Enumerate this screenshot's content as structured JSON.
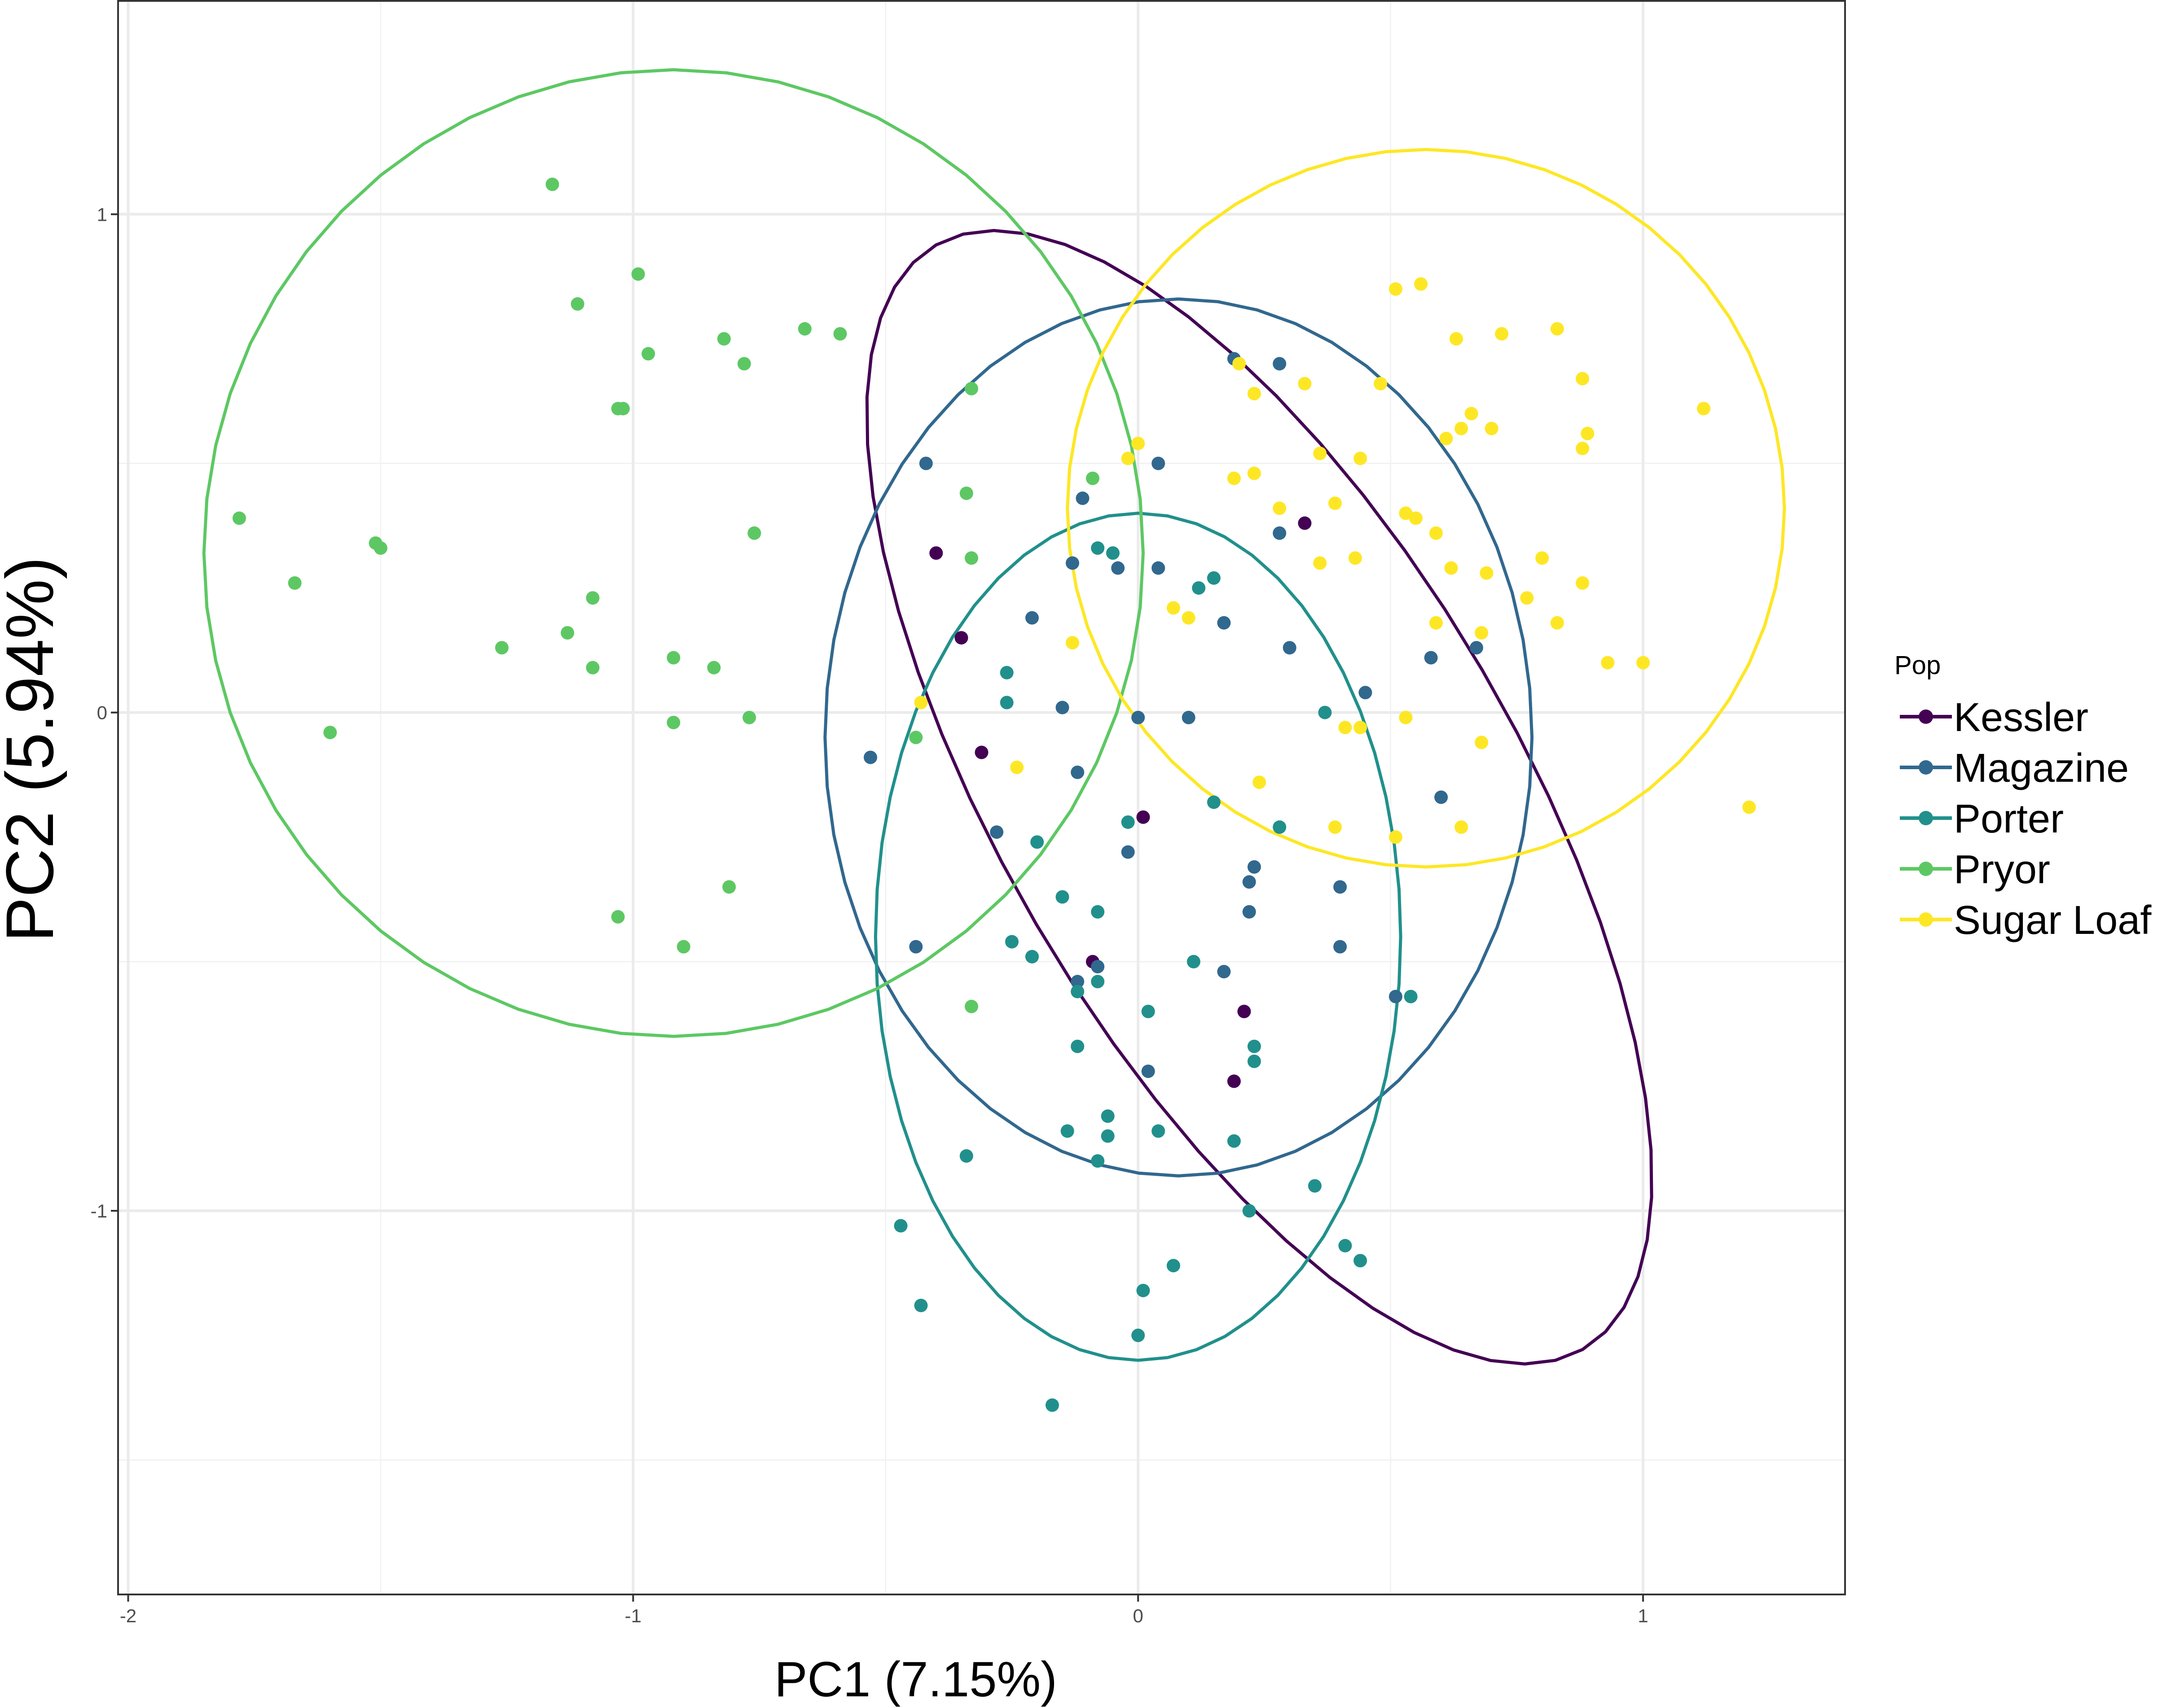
{
  "chart_data": {
    "type": "scatter",
    "xlabel": "PC1 (7.15%)",
    "ylabel": "PC2 (5.94%)",
    "xlim": [
      -2.02,
      1.4
    ],
    "ylim": [
      -1.77,
      1.43
    ],
    "x_ticks": [
      -2,
      -1,
      0,
      1
    ],
    "x_tick_labels": [
      "-2",
      "-1",
      "0",
      "1"
    ],
    "y_ticks": [
      -1,
      0,
      1
    ],
    "y_tick_labels": [
      "-1",
      "0",
      "1"
    ],
    "grid": true,
    "legend_position": "right",
    "legend_title": "Pop",
    "ellipses": true,
    "series": [
      {
        "name": "Kessler",
        "color": "#440154",
        "points": [
          [
            -0.4,
            0.32
          ],
          [
            -0.35,
            0.15
          ],
          [
            -0.31,
            -0.08
          ],
          [
            0.33,
            0.38
          ],
          [
            0.01,
            -0.21
          ],
          [
            -0.09,
            -0.5
          ],
          [
            0.21,
            -0.6
          ],
          [
            0.19,
            -0.74
          ]
        ],
        "ellipse": {
          "cx": 0.24,
          "cy": -0.17,
          "rx": 1.28,
          "ry": 0.51,
          "angle_deg": -60
        }
      },
      {
        "name": "Magazine",
        "color": "#31688E",
        "points": [
          [
            0.19,
            0.71
          ],
          [
            0.28,
            0.7
          ],
          [
            -0.42,
            0.5
          ],
          [
            0.04,
            0.5
          ],
          [
            -0.11,
            0.43
          ],
          [
            0.28,
            0.36
          ],
          [
            -0.13,
            0.3
          ],
          [
            -0.04,
            0.29
          ],
          [
            0.04,
            0.29
          ],
          [
            -0.21,
            0.19
          ],
          [
            0.17,
            0.18
          ],
          [
            0.3,
            0.13
          ],
          [
            0.58,
            0.11
          ],
          [
            0.67,
            0.13
          ],
          [
            -0.15,
            0.01
          ],
          [
            0.45,
            0.04
          ],
          [
            0.0,
            -0.01
          ],
          [
            0.1,
            -0.01
          ],
          [
            -0.53,
            -0.09
          ],
          [
            -0.12,
            -0.12
          ],
          [
            -0.28,
            -0.24
          ],
          [
            -0.02,
            -0.28
          ],
          [
            0.23,
            -0.31
          ],
          [
            0.22,
            -0.34
          ],
          [
            0.4,
            -0.35
          ],
          [
            0.22,
            -0.4
          ],
          [
            -0.44,
            -0.47
          ],
          [
            0.4,
            -0.47
          ],
          [
            -0.21,
            -0.49
          ],
          [
            -0.12,
            -0.54
          ],
          [
            -0.08,
            -0.51
          ],
          [
            0.17,
            -0.52
          ],
          [
            0.51,
            -0.57
          ],
          [
            0.02,
            -0.72
          ],
          [
            0.6,
            -0.17
          ]
        ],
        "ellipse": {
          "cx": 0.08,
          "cy": -0.05,
          "rx": 0.7,
          "ry": 0.88,
          "angle_deg": 0
        }
      },
      {
        "name": "Porter",
        "color": "#21908C",
        "points": [
          [
            -0.08,
            0.33
          ],
          [
            -0.05,
            0.32
          ],
          [
            0.15,
            0.27
          ],
          [
            0.12,
            0.25
          ],
          [
            -0.26,
            0.08
          ],
          [
            -0.26,
            0.02
          ],
          [
            0.37,
            0.0
          ],
          [
            -0.2,
            -0.26
          ],
          [
            0.15,
            -0.18
          ],
          [
            0.28,
            -0.23
          ],
          [
            -0.02,
            -0.22
          ],
          [
            -0.15,
            -0.37
          ],
          [
            -0.08,
            -0.4
          ],
          [
            -0.25,
            -0.46
          ],
          [
            -0.21,
            -0.49
          ],
          [
            0.11,
            -0.5
          ],
          [
            -0.08,
            -0.54
          ],
          [
            0.54,
            -0.57
          ],
          [
            -0.12,
            -0.56
          ],
          [
            0.02,
            -0.6
          ],
          [
            0.23,
            -0.67
          ],
          [
            0.23,
            -0.7
          ],
          [
            -0.12,
            -0.67
          ],
          [
            -0.06,
            -0.81
          ],
          [
            -0.14,
            -0.84
          ],
          [
            -0.06,
            -0.85
          ],
          [
            -0.08,
            -0.9
          ],
          [
            0.04,
            -0.84
          ],
          [
            0.19,
            -0.86
          ],
          [
            0.35,
            -0.95
          ],
          [
            -0.34,
            -0.89
          ],
          [
            0.22,
            -1.0
          ],
          [
            -0.47,
            -1.03
          ],
          [
            0.41,
            -1.07
          ],
          [
            0.44,
            -1.1
          ],
          [
            0.07,
            -1.11
          ],
          [
            0.01,
            -1.16
          ],
          [
            -0.43,
            -1.19
          ],
          [
            0.0,
            -1.25
          ],
          [
            -0.17,
            -1.39
          ]
        ],
        "ellipse": {
          "cx": 0.0,
          "cy": -0.45,
          "rx": 0.52,
          "ry": 0.85,
          "angle_deg": 0
        }
      },
      {
        "name": "Pryor",
        "color": "#5DC863",
        "points": [
          [
            -1.16,
            1.06
          ],
          [
            -0.99,
            0.88
          ],
          [
            -1.11,
            0.82
          ],
          [
            -0.82,
            0.75
          ],
          [
            -0.66,
            0.77
          ],
          [
            -0.59,
            0.76
          ],
          [
            -0.97,
            0.72
          ],
          [
            -0.78,
            0.7
          ],
          [
            -1.02,
            0.61
          ],
          [
            -1.03,
            0.61
          ],
          [
            -0.33,
            0.65
          ],
          [
            -0.09,
            0.47
          ],
          [
            -0.34,
            0.44
          ],
          [
            -0.33,
            0.31
          ],
          [
            -1.78,
            0.39
          ],
          [
            -1.5,
            0.33
          ],
          [
            -1.51,
            0.34
          ],
          [
            -0.76,
            0.36
          ],
          [
            -1.67,
            0.26
          ],
          [
            -1.08,
            0.23
          ],
          [
            -1.13,
            0.16
          ],
          [
            -1.26,
            0.13
          ],
          [
            -0.92,
            0.11
          ],
          [
            -0.84,
            0.09
          ],
          [
            -1.08,
            0.09
          ],
          [
            -0.92,
            -0.02
          ],
          [
            -0.77,
            -0.01
          ],
          [
            -1.6,
            -0.04
          ],
          [
            -0.44,
            -0.05
          ],
          [
            -0.81,
            -0.35
          ],
          [
            -1.03,
            -0.41
          ],
          [
            -0.9,
            -0.47
          ],
          [
            -0.33,
            -0.59
          ]
        ],
        "ellipse": {
          "cx": -0.92,
          "cy": 0.32,
          "rx": 0.93,
          "ry": 0.97,
          "angle_deg": 0
        }
      },
      {
        "name": "Sugar Loaf",
        "color": "#FDE725",
        "points": [
          [
            0.51,
            0.85
          ],
          [
            0.56,
            0.86
          ],
          [
            0.83,
            0.77
          ],
          [
            0.72,
            0.76
          ],
          [
            0.63,
            0.75
          ],
          [
            0.2,
            0.7
          ],
          [
            0.88,
            0.67
          ],
          [
            0.33,
            0.66
          ],
          [
            0.48,
            0.66
          ],
          [
            0.23,
            0.64
          ],
          [
            1.12,
            0.61
          ],
          [
            0.66,
            0.6
          ],
          [
            0.64,
            0.57
          ],
          [
            0.7,
            0.57
          ],
          [
            0.89,
            0.56
          ],
          [
            0.61,
            0.55
          ],
          [
            0.88,
            0.53
          ],
          [
            0.0,
            0.54
          ],
          [
            -0.02,
            0.51
          ],
          [
            0.36,
            0.52
          ],
          [
            0.44,
            0.51
          ],
          [
            0.23,
            0.48
          ],
          [
            0.19,
            0.47
          ],
          [
            0.39,
            0.42
          ],
          [
            0.28,
            0.41
          ],
          [
            0.53,
            0.4
          ],
          [
            0.55,
            0.39
          ],
          [
            0.59,
            0.36
          ],
          [
            0.8,
            0.31
          ],
          [
            0.36,
            0.3
          ],
          [
            0.43,
            0.31
          ],
          [
            0.62,
            0.29
          ],
          [
            0.69,
            0.28
          ],
          [
            0.88,
            0.26
          ],
          [
            0.77,
            0.23
          ],
          [
            0.07,
            0.21
          ],
          [
            0.1,
            0.19
          ],
          [
            0.59,
            0.18
          ],
          [
            0.68,
            0.16
          ],
          [
            0.83,
            0.18
          ],
          [
            -0.13,
            0.14
          ],
          [
            0.93,
            0.1
          ],
          [
            1.0,
            0.1
          ],
          [
            -0.43,
            0.02
          ],
          [
            0.53,
            -0.01
          ],
          [
            0.41,
            -0.03
          ],
          [
            0.44,
            -0.03
          ],
          [
            0.68,
            -0.06
          ],
          [
            -0.24,
            -0.11
          ],
          [
            0.24,
            -0.14
          ],
          [
            0.39,
            -0.23
          ],
          [
            0.51,
            -0.25
          ],
          [
            0.64,
            -0.23
          ],
          [
            1.21,
            -0.19
          ]
        ],
        "ellipse": {
          "cx": 0.57,
          "cy": 0.41,
          "rx": 0.71,
          "ry": 0.72,
          "angle_deg": 0
        }
      }
    ]
  }
}
